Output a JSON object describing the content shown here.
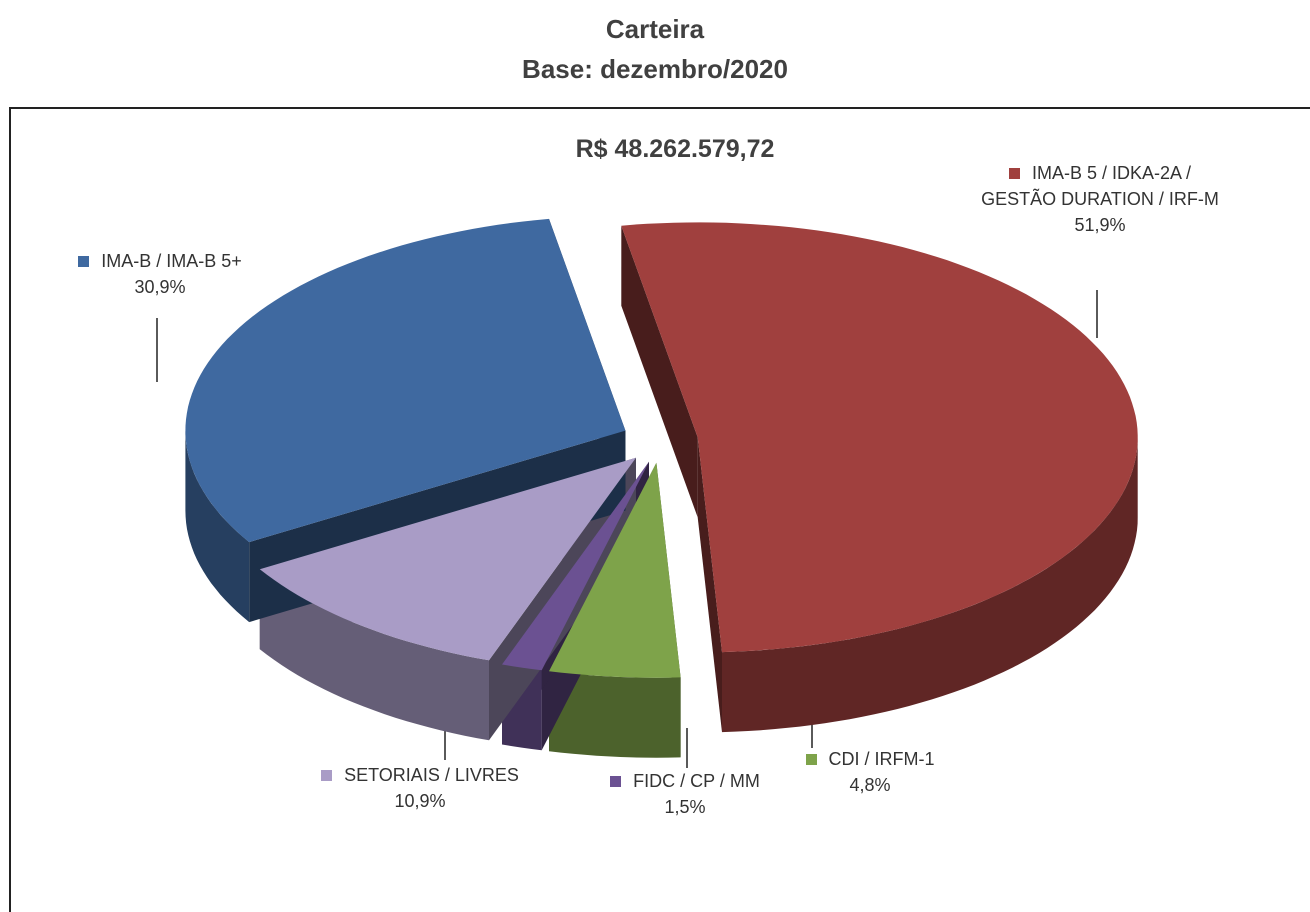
{
  "chart_data": {
    "type": "pie3d",
    "title": "Carteira",
    "subtitle": "Base: dezembro/2020",
    "annotation": "R$ 48.262.579,72",
    "categories": [
      "IMA-B 5 / IDKA-2A / GESTÃO DURATION / IRF-M",
      "CDI / IRFM-1",
      "FIDC / CP / MM",
      "SETORIAIS / LIVRES",
      "IMA-B / IMA-B 5+"
    ],
    "values": [
      51.9,
      4.8,
      1.5,
      10.9,
      30.9
    ],
    "value_labels": [
      "51,9%",
      "4,8%",
      "1,5%",
      "10,9%",
      "30,9%"
    ],
    "colors": [
      "#a0403e",
      "#7ea34a",
      "#6b5192",
      "#a99cc6",
      "#3f69a0"
    ]
  }
}
